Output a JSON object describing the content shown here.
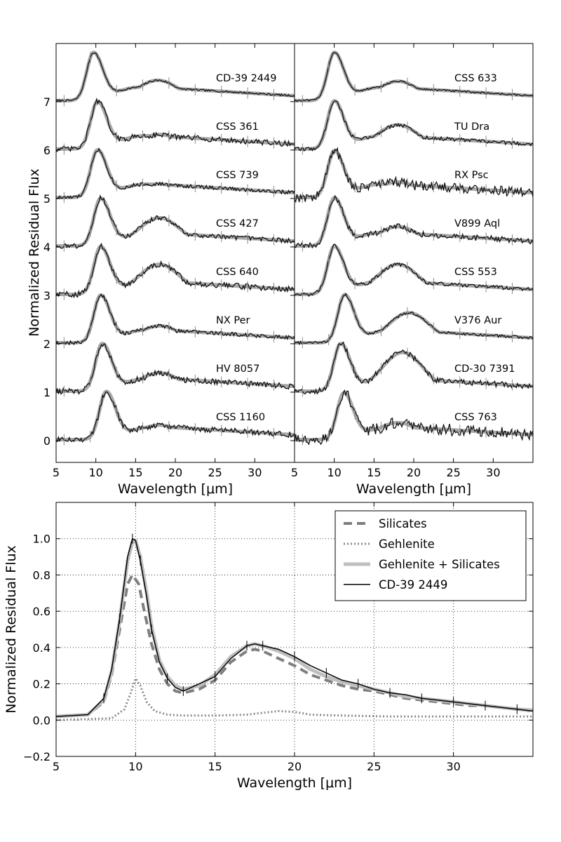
{
  "chart_data": [
    {
      "id": "top-left",
      "type": "line",
      "xlabel": "Wavelength [μm]",
      "ylabel": "Normalized Residual Flux",
      "xlim": [
        5,
        35
      ],
      "ylim": [
        -0.45,
        8.2
      ],
      "xticks": [
        5,
        10,
        15,
        20,
        25,
        30
      ],
      "yticks": [
        0,
        1,
        2,
        3,
        4,
        5,
        6,
        7
      ],
      "grid": false,
      "series": [
        {
          "name": "CD-39 2449",
          "offset": 7,
          "peak_um": 9.7,
          "peak_amp": 0.98,
          "bump_um": 17.8,
          "bump_amp": 0.42,
          "noise": 0.01
        },
        {
          "name": "CSS 361",
          "offset": 6,
          "peak_um": 10.2,
          "peak_amp": 0.97,
          "bump_um": 18.0,
          "bump_amp": 0.3,
          "noise": 0.03
        },
        {
          "name": "CSS 739",
          "offset": 5,
          "peak_um": 10.2,
          "peak_amp": 0.97,
          "bump_um": 18.0,
          "bump_amp": 0.28,
          "noise": 0.02
        },
        {
          "name": "CSS 427",
          "offset": 4,
          "peak_um": 10.6,
          "peak_amp": 0.97,
          "bump_um": 18.0,
          "bump_amp": 0.58,
          "noise": 0.025
        },
        {
          "name": "CSS 640",
          "offset": 3,
          "peak_um": 10.6,
          "peak_amp": 0.97,
          "bump_um": 18.0,
          "bump_amp": 0.62,
          "noise": 0.03
        },
        {
          "name": "NX Per",
          "offset": 2,
          "peak_um": 10.6,
          "peak_amp": 0.97,
          "bump_um": 18.0,
          "bump_amp": 0.35,
          "noise": 0.02
        },
        {
          "name": "HV 8057",
          "offset": 1,
          "peak_um": 10.8,
          "peak_amp": 0.97,
          "bump_um": 18.0,
          "bump_amp": 0.38,
          "noise": 0.03
        },
        {
          "name": "CSS 1160",
          "offset": 0,
          "peak_um": 11.3,
          "peak_amp": 0.98,
          "bump_um": 18.0,
          "bump_amp": 0.3,
          "noise": 0.03
        }
      ]
    },
    {
      "id": "top-right",
      "type": "line",
      "xlabel": "Wavelength [μm]",
      "ylabel": "",
      "xlim": [
        5,
        35
      ],
      "ylim": [
        -0.45,
        8.2
      ],
      "xticks": [
        5,
        10,
        15,
        20,
        25,
        30
      ],
      "yticks": [],
      "grid": false,
      "series": [
        {
          "name": "CSS 633",
          "offset": 7,
          "peak_um": 10.0,
          "peak_amp": 0.98,
          "bump_um": 18.0,
          "bump_amp": 0.4,
          "noise": 0.01
        },
        {
          "name": "TU Dra",
          "offset": 6,
          "peak_um": 10.0,
          "peak_amp": 0.98,
          "bump_um": 18.0,
          "bump_amp": 0.5,
          "noise": 0.02
        },
        {
          "name": "RX Psc",
          "offset": 5,
          "peak_um": 10.0,
          "peak_amp": 0.95,
          "bump_um": 18.0,
          "bump_amp": 0.32,
          "noise": 0.05
        },
        {
          "name": "V899 Aql",
          "offset": 4,
          "peak_um": 10.0,
          "peak_amp": 0.98,
          "bump_um": 18.0,
          "bump_amp": 0.4,
          "noise": 0.03
        },
        {
          "name": "CSS 553",
          "offset": 3,
          "peak_um": 10.0,
          "peak_amp": 0.98,
          "bump_um": 18.0,
          "bump_amp": 0.62,
          "noise": 0.02
        },
        {
          "name": "V376 Aur",
          "offset": 2,
          "peak_um": 11.3,
          "peak_amp": 0.98,
          "bump_um": 19.4,
          "bump_amp": 0.62,
          "noise": 0.015
        },
        {
          "name": "CD-30 7391",
          "offset": 1,
          "peak_um": 10.8,
          "peak_amp": 0.97,
          "bump_um": 18.6,
          "bump_amp": 0.8,
          "noise": 0.03
        },
        {
          "name": "CSS 763",
          "offset": 0,
          "peak_um": 11.2,
          "peak_amp": 0.95,
          "bump_um": 18.0,
          "bump_amp": 0.35,
          "noise": 0.06
        }
      ]
    },
    {
      "id": "bottom",
      "type": "line",
      "xlabel": "Wavelength [μm]",
      "ylabel": "Normalized Residual Flux",
      "xlim": [
        5,
        35
      ],
      "ylim": [
        -0.2,
        1.2
      ],
      "xticks": [
        5,
        10,
        15,
        20,
        25,
        30
      ],
      "yticks": [
        -0.2,
        0.0,
        0.2,
        0.4,
        0.6,
        0.8,
        1.0
      ],
      "ytick_labels": [
        "−0.2",
        "0.0",
        "0.2",
        "0.4",
        "0.6",
        "0.8",
        "1.0"
      ],
      "grid": true,
      "legend_position": "top-right",
      "series": [
        {
          "name": "Silicates",
          "style": "dashed",
          "color": "#7f7f7f",
          "x": [
            5,
            7,
            8,
            8.5,
            9,
            9.5,
            9.8,
            10.2,
            10.5,
            11,
            11.5,
            12,
            12.5,
            13,
            14,
            15,
            16,
            17,
            17.5,
            18,
            19,
            20,
            21,
            22,
            23,
            24,
            25,
            26,
            27,
            28,
            29,
            30,
            31,
            32,
            33,
            34,
            35
          ],
          "y": [
            0.02,
            0.03,
            0.1,
            0.25,
            0.5,
            0.75,
            0.8,
            0.75,
            0.62,
            0.42,
            0.28,
            0.2,
            0.16,
            0.15,
            0.17,
            0.22,
            0.32,
            0.38,
            0.39,
            0.38,
            0.34,
            0.3,
            0.25,
            0.22,
            0.19,
            0.17,
            0.16,
            0.14,
            0.12,
            0.11,
            0.1,
            0.09,
            0.08,
            0.08,
            0.07,
            0.06,
            0.05
          ]
        },
        {
          "name": "Gehlenite",
          "style": "dotted",
          "color": "#8c8c8c",
          "x": [
            5,
            8.5,
            9.3,
            9.7,
            10.0,
            10.3,
            10.7,
            11.2,
            12,
            13,
            15,
            17,
            18,
            19,
            20,
            21,
            23,
            26,
            30,
            35
          ],
          "y": [
            0.0,
            0.01,
            0.06,
            0.15,
            0.23,
            0.19,
            0.1,
            0.05,
            0.03,
            0.025,
            0.025,
            0.03,
            0.04,
            0.05,
            0.045,
            0.03,
            0.025,
            0.02,
            0.02,
            0.02
          ]
        },
        {
          "name": "Gehlenite + Silicates",
          "style": "solid",
          "color": "#bfbfbf",
          "x": [
            5,
            7,
            8,
            8.5,
            9,
            9.5,
            9.8,
            10.0,
            10.3,
            10.7,
            11,
            11.5,
            12,
            12.5,
            13,
            14,
            15,
            16,
            17,
            17.5,
            18,
            19,
            20,
            21,
            22,
            23,
            24,
            25,
            26,
            27,
            28,
            29,
            30,
            31,
            32,
            33,
            34,
            35
          ],
          "y": [
            0.02,
            0.03,
            0.11,
            0.27,
            0.55,
            0.88,
            0.98,
            0.99,
            0.9,
            0.7,
            0.52,
            0.33,
            0.24,
            0.19,
            0.17,
            0.19,
            0.25,
            0.35,
            0.41,
            0.42,
            0.41,
            0.38,
            0.34,
            0.28,
            0.24,
            0.21,
            0.19,
            0.17,
            0.15,
            0.13,
            0.12,
            0.11,
            0.1,
            0.09,
            0.08,
            0.07,
            0.06,
            0.055
          ]
        },
        {
          "name": "CD-39 2449",
          "style": "solid",
          "color": "#000000",
          "x": [
            5,
            7,
            8,
            8.5,
            9,
            9.5,
            9.8,
            10.0,
            10.3,
            10.7,
            11,
            11.5,
            12,
            12.5,
            13,
            14,
            15,
            16,
            17,
            17.5,
            18,
            19,
            20,
            21,
            22,
            23,
            24,
            25,
            26,
            27,
            28,
            29,
            30,
            31,
            32,
            33,
            34,
            35
          ],
          "y": [
            0.02,
            0.03,
            0.12,
            0.28,
            0.56,
            0.9,
            1.0,
            0.99,
            0.88,
            0.68,
            0.5,
            0.32,
            0.23,
            0.18,
            0.16,
            0.2,
            0.24,
            0.34,
            0.41,
            0.42,
            0.41,
            0.39,
            0.35,
            0.3,
            0.26,
            0.22,
            0.2,
            0.17,
            0.15,
            0.14,
            0.12,
            0.11,
            0.1,
            0.09,
            0.08,
            0.07,
            0.06,
            0.05
          ]
        }
      ]
    }
  ]
}
